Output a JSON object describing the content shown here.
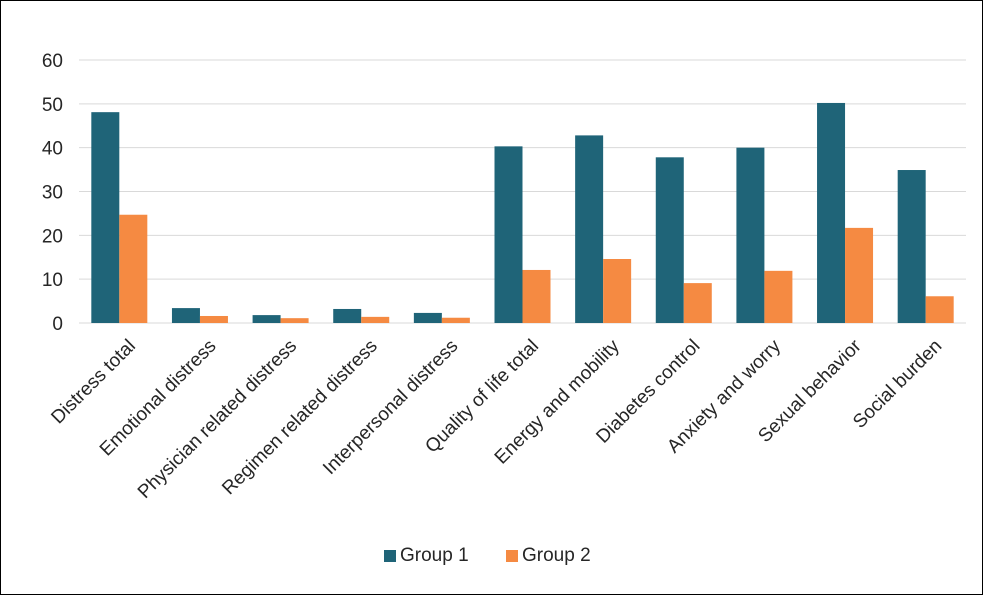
{
  "chart_data": {
    "type": "bar",
    "title": "",
    "xlabel": "",
    "ylabel": "",
    "ylim": [
      0,
      60
    ],
    "yticks": [
      0,
      10,
      20,
      30,
      40,
      50,
      60
    ],
    "grid": true,
    "legend_position": "bottom",
    "categories": [
      "Distress total",
      "Emotional distress",
      "Physician related distress",
      "Regimen related distress",
      "Interpersonal distress",
      "Quality of life total",
      "Energy and mobility",
      "Diabetes control",
      "Anxiety and worry",
      "Sexual behavior",
      "Social burden"
    ],
    "series": [
      {
        "name": "Group 1",
        "color": "#1F6478",
        "values": [
          48.1,
          3.4,
          1.8,
          3.2,
          2.3,
          40.3,
          42.8,
          37.8,
          40.0,
          50.2,
          34.9
        ]
      },
      {
        "name": "Group 2",
        "color": "#F58A42",
        "values": [
          24.7,
          1.6,
          1.1,
          1.4,
          1.2,
          12.1,
          14.6,
          9.1,
          11.9,
          21.7,
          6.1
        ]
      }
    ]
  }
}
